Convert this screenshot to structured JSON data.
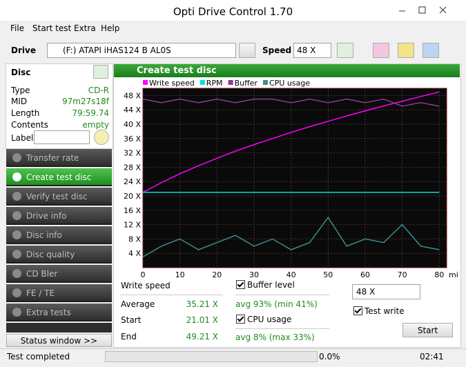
{
  "window": {
    "title": "Opti Drive Control 1.70"
  },
  "menu": [
    "File",
    "Start test",
    "Extra",
    "Help"
  ],
  "toolbar": {
    "drive_label": "Drive",
    "drive": "(F:)   ATAPI iHAS124   B AL0S",
    "speed_label": "Speed",
    "speed": "48 X"
  },
  "disc": {
    "title": "Disc",
    "fields": [
      [
        "Type",
        "CD-R"
      ],
      [
        "MID",
        "97m27s18f"
      ],
      [
        "Length",
        "79:59.74"
      ],
      [
        "Contents",
        "empty"
      ]
    ],
    "label": "Label"
  },
  "nav": [
    "Transfer rate",
    "Create test disc",
    "Verify test disc",
    "Drive info",
    "Disc info",
    "Disc quality",
    "CD Bler",
    "FE / TE",
    "Extra tests"
  ],
  "status_window": "Status window >>",
  "panel": {
    "title": "Create test disc"
  },
  "chart_data": {
    "type": "line",
    "x_label": "min",
    "x": [
      0,
      5,
      10,
      15,
      20,
      25,
      30,
      35,
      40,
      45,
      50,
      55,
      60,
      65,
      70,
      75,
      80
    ],
    "series": [
      {
        "name": "Write speed",
        "color": "#ff00ff",
        "values": [
          21,
          23.7,
          26.2,
          28.4,
          30.5,
          32.5,
          34.3,
          36,
          37.7,
          39.3,
          40.8,
          42.3,
          43.7,
          45.1,
          46.4,
          47.7,
          49
        ]
      },
      {
        "name": "RPM",
        "color": "#00e0e0",
        "values": [
          21,
          21,
          21,
          21,
          21,
          21,
          21,
          21,
          21,
          21,
          21,
          21,
          21,
          21,
          21,
          21,
          21
        ]
      },
      {
        "name": "Buffer",
        "color": "#8e3c8e",
        "values": [
          47,
          46,
          47,
          46,
          47,
          46,
          47,
          47,
          46,
          47,
          46,
          47,
          46,
          47,
          45,
          46,
          45
        ]
      },
      {
        "name": "CPU usage",
        "color": "#3c8c8c",
        "values": [
          3,
          6,
          8,
          5,
          7,
          9,
          6,
          8,
          5,
          7,
          14,
          6,
          8,
          7,
          12,
          6,
          5
        ]
      }
    ],
    "xlim": [
      0,
      82
    ],
    "xticks": [
      0,
      10,
      20,
      30,
      40,
      50,
      60,
      70,
      80
    ],
    "ylim": [
      0,
      50
    ],
    "yticks": [
      {
        "value": 4,
        "label": "4 X"
      },
      {
        "value": 8,
        "label": "8 X"
      },
      {
        "value": 12,
        "label": "12 X"
      },
      {
        "value": 16,
        "label": "16 X"
      },
      {
        "value": 20,
        "label": "20 X"
      },
      {
        "value": 24,
        "label": "24 X"
      },
      {
        "value": 28,
        "label": "28 X"
      },
      {
        "value": 32,
        "label": "32 X"
      },
      {
        "value": 36,
        "label": "36 X"
      },
      {
        "value": 40,
        "label": "40 X"
      },
      {
        "value": 44,
        "label": "44 X"
      },
      {
        "value": 48,
        "label": "48 X"
      }
    ],
    "grid": true
  },
  "stats": {
    "write_speed": "Write speed",
    "rows": [
      [
        "Average",
        "35.21 X"
      ],
      [
        "Start",
        "21.01 X"
      ],
      [
        "End",
        "49.21 X"
      ]
    ],
    "buffer_level": "Buffer level",
    "buffer_avg": "avg 93% (min 41%)",
    "cpu_usage": "CPU usage",
    "cpu_avg": "avg 8% (max 33%)",
    "speed": "48 X",
    "test_write": "Test write",
    "start": "Start"
  },
  "status": {
    "text": "Test completed",
    "progress": "0.0%",
    "time": "02:41"
  }
}
